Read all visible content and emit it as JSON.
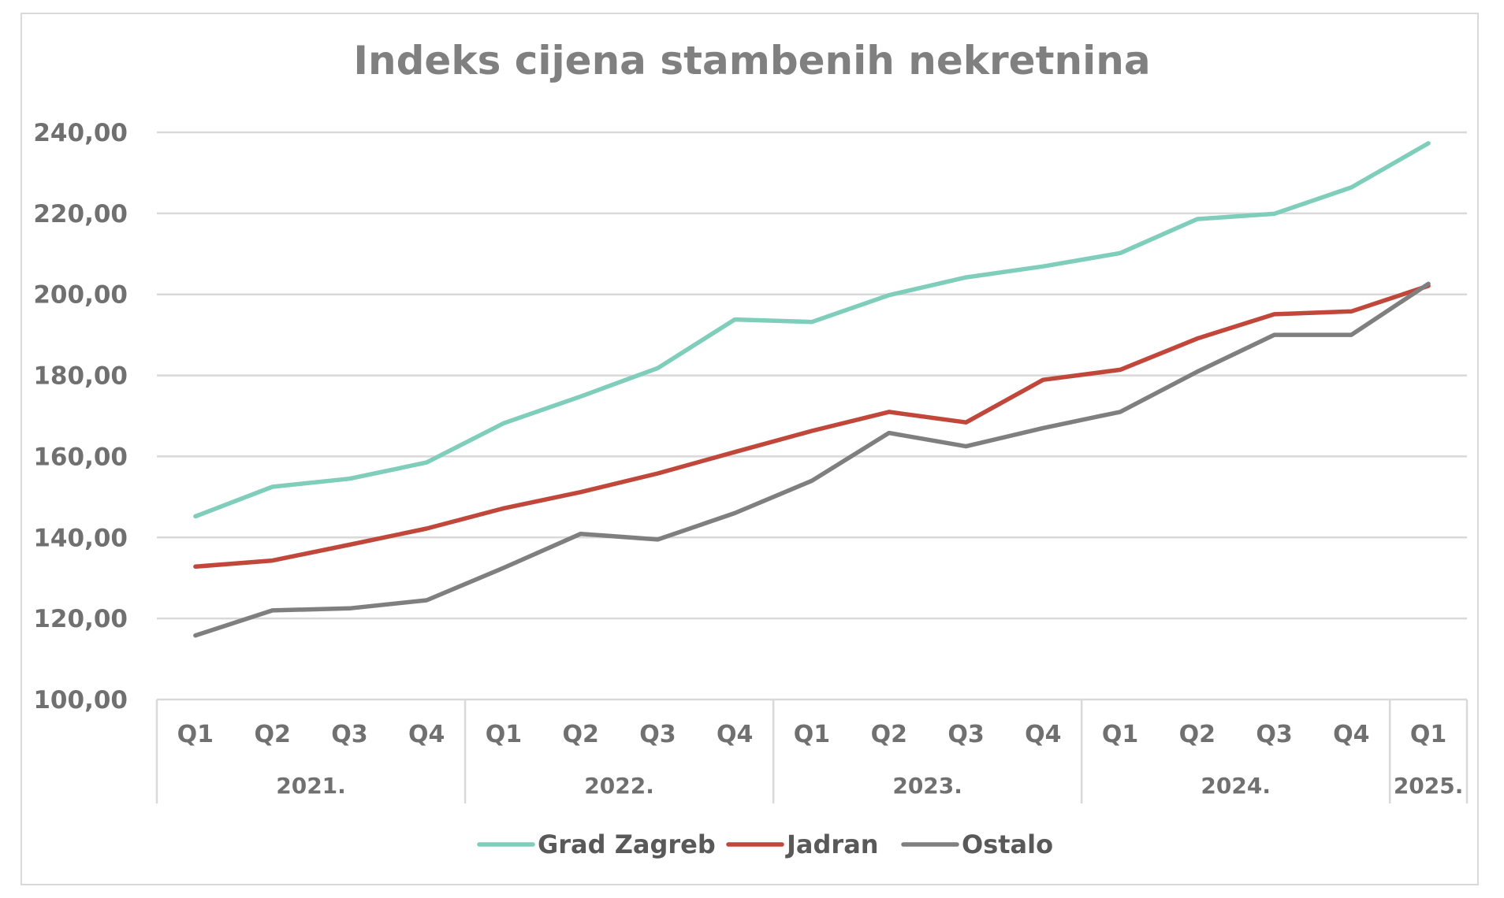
{
  "chart_data": {
    "type": "line",
    "title": "Indeks cijena stambenih nekretnina",
    "xlabel": "",
    "ylabel": "",
    "ylim": [
      100,
      240
    ],
    "yticks": [
      "100,00",
      "120,00",
      "140,00",
      "160,00",
      "180,00",
      "200,00",
      "220,00",
      "240,00"
    ],
    "categories": [
      "Q1",
      "Q2",
      "Q3",
      "Q4",
      "Q1",
      "Q2",
      "Q3",
      "Q4",
      "Q1",
      "Q2",
      "Q3",
      "Q4",
      "Q1",
      "Q2",
      "Q3",
      "Q4",
      "Q1"
    ],
    "year_groups": [
      {
        "label": "2021.",
        "count": 4
      },
      {
        "label": "2022.",
        "count": 4
      },
      {
        "label": "2023.",
        "count": 4
      },
      {
        "label": "2024.",
        "count": 4
      },
      {
        "label": "2025.",
        "count": 1
      }
    ],
    "grid": true,
    "legend_position": "bottom",
    "series": [
      {
        "name": "Grad Zagreb",
        "color": "#7fcdbb",
        "values": [
          145.2,
          152.5,
          154.5,
          158.5,
          168.2,
          174.8,
          181.8,
          193.8,
          193.2,
          199.8,
          204.2,
          206.9,
          210.2,
          218.6,
          219.9,
          226.4,
          237.3
        ]
      },
      {
        "name": "Jadran",
        "color": "#c0473a",
        "values": [
          132.8,
          134.3,
          138.2,
          142.2,
          147.2,
          151.2,
          155.8,
          161.1,
          166.3,
          171.0,
          168.4,
          178.9,
          181.4,
          189.1,
          195.1,
          195.8,
          202.1
        ]
      },
      {
        "name": "Ostalo",
        "color": "#7f7f7f",
        "values": [
          115.8,
          122.0,
          122.5,
          124.5,
          132.5,
          140.9,
          139.5,
          146.0,
          154.0,
          165.8,
          162.5,
          167.0,
          171.0,
          180.9,
          190.0,
          190.0,
          202.6
        ]
      }
    ]
  }
}
